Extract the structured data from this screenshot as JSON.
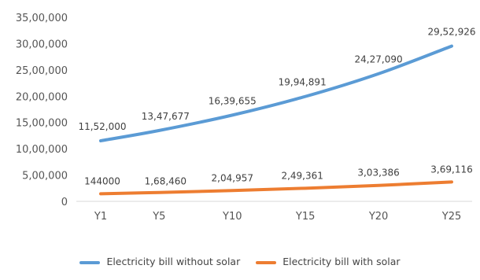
{
  "chart_data": {
    "type": "line",
    "title": "",
    "xlabel": "",
    "ylabel": "",
    "categories": [
      "Y1",
      "Y5",
      "Y10",
      "Y15",
      "Y20",
      "Y25"
    ],
    "x_numeric": [
      1,
      5,
      10,
      15,
      20,
      25
    ],
    "ylim": [
      0,
      3500000
    ],
    "y_ticks": [
      0,
      500000,
      1000000,
      1500000,
      2000000,
      2500000,
      3000000,
      3500000
    ],
    "y_tick_labels": [
      "0",
      "5,00,000",
      "10,00,000",
      "15,00,000",
      "20,00,000",
      "25,00,000",
      "30,00,000",
      "35,00,000"
    ],
    "grid": false,
    "legend_position": "bottom",
    "series": [
      {
        "name": "Electricity bill without solar",
        "color": "#5b9bd5",
        "values": [
          1152000,
          1347677,
          1639655,
          1994891,
          2427090,
          2952926
        ],
        "labels": [
          "11,52,000",
          "13,47,677",
          "16,39,655",
          "19,94,891",
          "24,27,090",
          "29,52,926"
        ]
      },
      {
        "name": "Electricity bill with solar",
        "color": "#ed7d31",
        "values": [
          144000,
          168460,
          204957,
          249361,
          303386,
          369116
        ],
        "labels": [
          "144000",
          "1,68,460",
          "2,04,957",
          "2,49,361",
          "3,03,386",
          "3,69,116"
        ]
      }
    ]
  }
}
